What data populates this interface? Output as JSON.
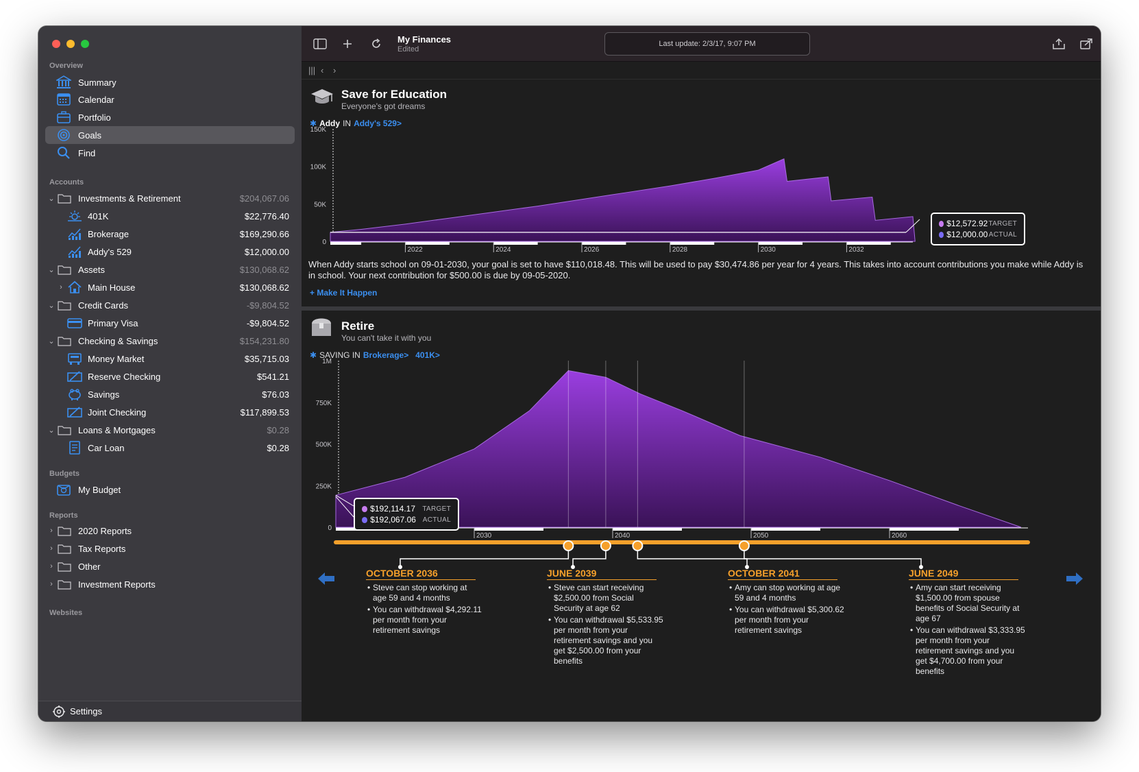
{
  "sidebar": {
    "overview_title": "Overview",
    "overview": [
      {
        "label": "Summary",
        "icon": "bank-icon"
      },
      {
        "label": "Calendar",
        "icon": "calendar-icon"
      },
      {
        "label": "Portfolio",
        "icon": "portfolio-icon"
      },
      {
        "label": "Goals",
        "icon": "target-icon",
        "active": true
      },
      {
        "label": "Find",
        "icon": "search-icon"
      }
    ],
    "accounts_title": "Accounts",
    "groups": [
      {
        "label": "Investments & Retirement",
        "value": "$204,067.06",
        "items": [
          {
            "label": "401K",
            "value": "$22,776.40",
            "icon": "sun-chart-icon"
          },
          {
            "label": "Brokerage",
            "value": "$169,290.66",
            "icon": "stock-chart-icon"
          },
          {
            "label": "Addy's 529",
            "value": "$12,000.00",
            "icon": "stock-chart-icon"
          }
        ]
      },
      {
        "label": "Assets",
        "value": "$130,068.62",
        "items": [
          {
            "label": "Main House",
            "value": "$130,068.62",
            "icon": "house-icon"
          }
        ]
      },
      {
        "label": "Credit Cards",
        "value": "-$9,804.52",
        "items": [
          {
            "label": "Primary Visa",
            "value": "-$9,804.52",
            "icon": "credit-card-icon"
          }
        ]
      },
      {
        "label": "Checking & Savings",
        "value": "$154,231.80",
        "items": [
          {
            "label": "Money Market",
            "value": "$35,715.03",
            "icon": "money-market-icon"
          },
          {
            "label": "Reserve Checking",
            "value": "$541.21",
            "icon": "check-icon"
          },
          {
            "label": "Savings",
            "value": "$76.03",
            "icon": "piggy-bank-icon"
          },
          {
            "label": "Joint Checking",
            "value": "$117,899.53",
            "icon": "check-icon"
          }
        ]
      },
      {
        "label": "Loans & Mortgages",
        "value": "$0.28",
        "items": [
          {
            "label": "Car Loan",
            "value": "$0.28",
            "icon": "loan-icon"
          }
        ]
      }
    ],
    "budgets_title": "Budgets",
    "budget": "My Budget",
    "reports_title": "Reports",
    "reports": [
      "2020 Reports",
      "Tax Reports",
      "Other",
      "Investment Reports"
    ],
    "websites_title": "Websites",
    "settings": "Settings"
  },
  "toolbar": {
    "title": "My Finances",
    "subtitle": "Edited",
    "status": "Last update: 2/3/17, 9:07 PM"
  },
  "education": {
    "title": "Save for Education",
    "subtitle": "Everyone's got dreams",
    "who": "Addy",
    "in_word": "IN",
    "account_link": "Addy's 529>",
    "description": "When Addy starts school on 09-01-2030, your goal is set to have $110,018.48. This will be used to pay $30,474.86 per year for 4 years. This takes into account contributions you make while Addy is in school. Your next contribution for $500.00 is due by 09-05-2020.",
    "action": "+ Make It Happen",
    "tooltip": {
      "target_value": "$12,572.92",
      "target_label": "TARGET",
      "actual_value": "$12,000.00",
      "actual_label": "ACTUAL"
    }
  },
  "retire": {
    "title": "Retire",
    "subtitle": "You can't take it with you",
    "saving_in": "SAVING IN",
    "links": [
      "Brokerage>",
      "401K>"
    ],
    "tooltip": {
      "target_value": "$192,114.17",
      "target_label": "TARGET",
      "actual_value": "$192,067.06",
      "actual_label": "ACTUAL"
    },
    "events": [
      {
        "date": "OCTOBER 2036",
        "bullets": [
          "Steve can stop working at age 59 and 4 months",
          "You can withdrawal $4,292.11 per month from your retirement savings"
        ]
      },
      {
        "date": "JUNE 2039",
        "bullets": [
          "Steve can start receiving $2,500.00 from Social Security at age 62",
          "You can withdrawal $5,533.95 per month from your retirement savings and you get $2,500.00 from your benefits"
        ]
      },
      {
        "date": "OCTOBER 2041",
        "bullets": [
          "Amy can stop working at age 59 and 4 months",
          "You can withdrawal $5,300.62 per month from your retirement savings"
        ]
      },
      {
        "date": "JUNE 2049",
        "bullets": [
          "Amy can start receiving $1,500.00 from spouse benefits of Social Security at age 67",
          "You can withdrawal $3,333.95 per month from your retirement savings and you get $4,700.00 from your benefits"
        ]
      }
    ]
  },
  "colors": {
    "accent": "#3b8ff0",
    "purple": "#8a2fc9",
    "orange": "#f6a02b",
    "target_dot": "#c77cf0",
    "actual_dot": "#7a6cf5"
  },
  "chart_data": [
    {
      "type": "area",
      "title": "Save for Education",
      "x_ticks": [
        "2022",
        "2024",
        "2026",
        "2028",
        "2030",
        "2032"
      ],
      "y_ticks": [
        "0",
        "50K",
        "100K",
        "150K"
      ],
      "ylim": [
        0,
        150000
      ],
      "xlim": [
        2020.3,
        2033.5
      ],
      "series": [
        {
          "x": [
            2020.3,
            2020.3,
            2021,
            2022,
            2023,
            2024,
            2025,
            2026,
            2027,
            2028,
            2029,
            2030.0,
            2030.58,
            2030.65,
            2031.58,
            2031.65,
            2032.58,
            2032.65,
            2033.5,
            2033.55
          ],
          "y": [
            3000,
            12000,
            16000,
            23000,
            31000,
            39000,
            47000,
            56000,
            65000,
            74000,
            84000,
            95000,
            110018,
            80000,
            86000,
            54000,
            59000,
            28000,
            33000,
            0
          ]
        }
      ],
      "target_value": 12572.92,
      "actual_value": 12000.0
    },
    {
      "type": "area",
      "title": "Retire",
      "x_ticks": [
        "2030",
        "2040",
        "2050",
        "2060"
      ],
      "y_ticks": [
        "0",
        "250K",
        "500K",
        "750K",
        "1M"
      ],
      "ylim": [
        0,
        1000000
      ],
      "xlim": [
        2020,
        2070
      ],
      "series": [
        {
          "x": [
            2020,
            2020,
            2025,
            2030,
            2034,
            2036.8,
            2039.5,
            2042,
            2045,
            2049.2,
            2055,
            2060,
            2065,
            2069.5
          ],
          "y": [
            0,
            192067,
            300000,
            470000,
            700000,
            940000,
            900000,
            800000,
            700000,
            550000,
            420000,
            280000,
            130000,
            0
          ]
        }
      ],
      "markers": [
        2036.8,
        2039.5,
        2041.8,
        2049.5
      ],
      "target_value": 192114.17,
      "actual_value": 192067.06
    }
  ]
}
